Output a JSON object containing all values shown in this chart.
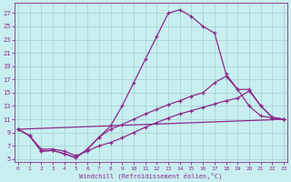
{
  "xlabel": "Windchill (Refroidissement éolien,°C)",
  "background_color": "#c8eef0",
  "line_color": "#8b2a8b",
  "grid_color": "#a0d0d0",
  "ylim": [
    4.5,
    28.5
  ],
  "xlim": [
    -0.3,
    23.3
  ],
  "yticks": [
    5,
    7,
    9,
    11,
    13,
    15,
    17,
    19,
    21,
    23,
    25,
    27
  ],
  "xticks": [
    0,
    1,
    2,
    3,
    4,
    5,
    6,
    7,
    8,
    9,
    10,
    11,
    12,
    13,
    14,
    15,
    16,
    17,
    18,
    19,
    20,
    21,
    22,
    23
  ],
  "line1_x": [
    0,
    1,
    2,
    3,
    4,
    5,
    6,
    7,
    8,
    9,
    10,
    11,
    12,
    13,
    14,
    15,
    16,
    17,
    18,
    19,
    20,
    21,
    22,
    23
  ],
  "line1_y": [
    9.5,
    8.5,
    6.2,
    6.3,
    5.8,
    5.2,
    6.5,
    8.3,
    10.0,
    13.0,
    16.5,
    20.0,
    23.5,
    27.0,
    27.5,
    26.5,
    25.0,
    24.0,
    17.8,
    15.5,
    13.0,
    11.5,
    11.2,
    11.0
  ],
  "line2_x": [
    0,
    1,
    2,
    3,
    4,
    5,
    6,
    7,
    8,
    9,
    10,
    11,
    12,
    13,
    14,
    15,
    16,
    17,
    18,
    19,
    20,
    21,
    22,
    23
  ],
  "line2_y": [
    9.5,
    8.5,
    6.2,
    6.3,
    5.8,
    5.2,
    6.5,
    8.3,
    9.5,
    10.2,
    11.0,
    11.8,
    12.5,
    13.2,
    13.8,
    14.5,
    15.0,
    16.5,
    17.5,
    15.5,
    15.5,
    13.0,
    11.3,
    11.0
  ],
  "line3_x": [
    0,
    1,
    2,
    3,
    4,
    5,
    6,
    7,
    8,
    9,
    10,
    11,
    12,
    13,
    14,
    15,
    16,
    17,
    18,
    19,
    20,
    21,
    22,
    23
  ],
  "line3_y": [
    9.5,
    8.5,
    6.5,
    6.5,
    6.2,
    5.5,
    6.2,
    7.0,
    7.5,
    8.2,
    9.0,
    9.8,
    10.5,
    11.2,
    11.8,
    12.3,
    12.8,
    13.3,
    13.8,
    14.2,
    15.3,
    13.0,
    11.3,
    11.0
  ],
  "line4_x": [
    0,
    23
  ],
  "line4_y": [
    9.5,
    11.0
  ]
}
